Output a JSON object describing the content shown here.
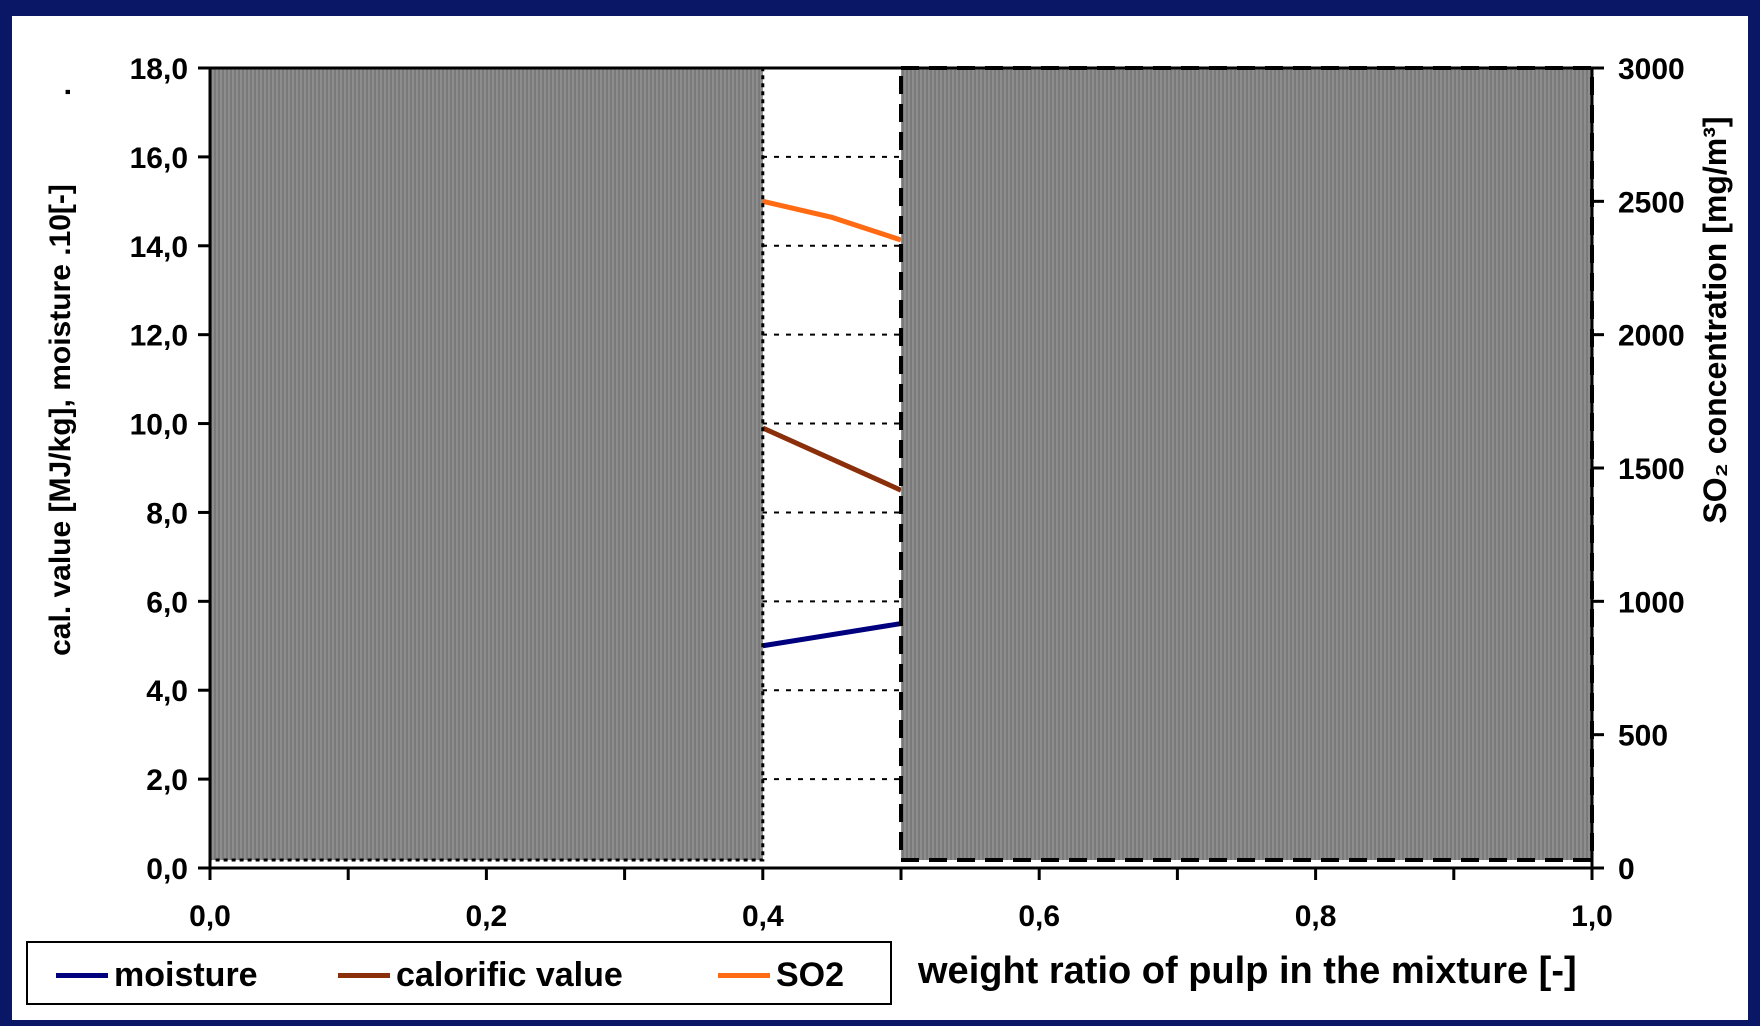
{
  "chart_data": {
    "type": "line",
    "xlabel": "weight ratio of pulp in the mixture  [-]",
    "ylabel": "cal. value [MJ/kg], moisture .10[-]",
    "ylabel_dot": ".",
    "y2label": "SO₂ concentration [mg/m³]",
    "xlim": [
      0,
      1
    ],
    "ylim": [
      0,
      18
    ],
    "y2lim": [
      0,
      3000
    ],
    "x_ticks": [
      "0,0",
      "0,2",
      "0,4",
      "0,6",
      "0,8",
      "1,0"
    ],
    "y_ticks": [
      "0,0",
      "2,0",
      "4,0",
      "6,0",
      "8,0",
      "10,0",
      "12,0",
      "14,0",
      "16,0",
      "18,0"
    ],
    "y2_ticks": [
      "0",
      "500",
      "1000",
      "1500",
      "2000",
      "2500",
      "3000"
    ],
    "grid": "horizontal dotted",
    "legend": "bottom-left",
    "series": [
      {
        "name": "moisture",
        "color": "#00007f",
        "axis": "left",
        "x": [
          0.4,
          0.5
        ],
        "values": [
          5.0,
          5.5
        ]
      },
      {
        "name": "calorific value",
        "color": "#8b2e0a",
        "axis": "left",
        "x": [
          0.4,
          0.5
        ],
        "values": [
          9.9,
          8.5
        ]
      },
      {
        "name": "SO2",
        "color": "#ff6a13",
        "axis": "right",
        "x": [
          0.4,
          0.45,
          0.5
        ],
        "values": [
          2500,
          2440,
          2355
        ]
      }
    ],
    "occluded_regions": [
      {
        "x_range": [
          0,
          0.4
        ],
        "border": "dotted"
      },
      {
        "x_range": [
          0.5,
          1.0
        ],
        "border": "dashed"
      }
    ]
  }
}
